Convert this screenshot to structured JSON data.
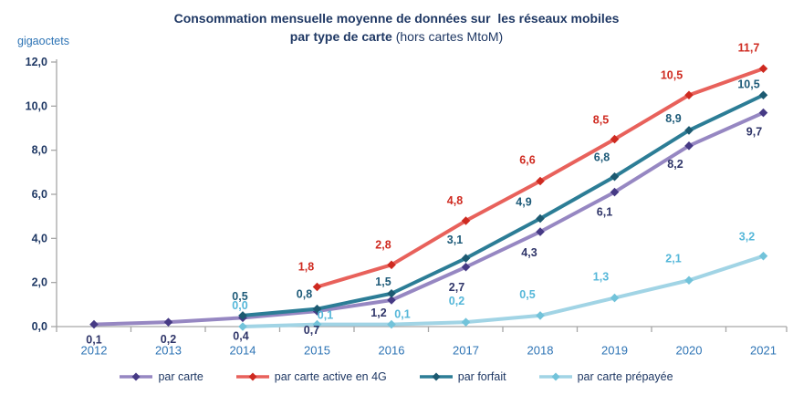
{
  "title": {
    "line1": "Consommation mensuelle moyenne de données sur  les réseaux mobiles",
    "line2_bold": "par type de carte",
    "line2_rest": " (hors cartes MtoM)"
  },
  "y_axis": {
    "unit_label": "gigaoctets",
    "tick_labels": [
      "0,0",
      "2,0",
      "4,0",
      "6,0",
      "8,0",
      "10,0",
      "12,0"
    ],
    "min": 0,
    "max": 12,
    "step": 2
  },
  "chart_data": {
    "type": "line",
    "title": "Consommation mensuelle moyenne de données sur les réseaux mobiles par type de carte (hors cartes MtoM)",
    "ylabel": "gigaoctets",
    "ylim": [
      0,
      12
    ],
    "ytick_step": 2,
    "grid": false,
    "legend_position": "bottom",
    "categories": [
      "2012",
      "2013",
      "2014",
      "2015",
      "2016",
      "2017",
      "2018",
      "2019",
      "2020",
      "2021"
    ],
    "series": [
      {
        "name": "par carte",
        "values": [
          0.1,
          0.2,
          0.4,
          0.7,
          1.2,
          2.7,
          4.3,
          6.1,
          8.2,
          9.7
        ],
        "labels": [
          "0,1",
          "0,2",
          "0,4",
          "0,7",
          "1,2",
          "2,7",
          "4,3",
          "6,1",
          "8,2",
          "9,7"
        ],
        "line_color": "#9687c2",
        "marker_color": "#463a85",
        "label_color": "#2f3569",
        "label_offsets": [
          [
            0,
            17
          ],
          [
            0,
            19
          ],
          [
            -2,
            20
          ],
          [
            -6,
            21
          ],
          [
            -14,
            14
          ],
          [
            -10,
            22
          ],
          [
            -12,
            23
          ],
          [
            -11,
            22
          ],
          [
            -15,
            20
          ],
          [
            -10,
            21
          ]
        ]
      },
      {
        "name": "par carte active en 4G",
        "values": [
          null,
          null,
          null,
          1.8,
          2.8,
          4.8,
          6.6,
          8.5,
          10.5,
          11.7
        ],
        "labels": [
          null,
          null,
          null,
          "1,8",
          "2,8",
          "4,8",
          "6,6",
          "8,5",
          "10,5",
          "11,7"
        ],
        "line_color": "#e8615b",
        "marker_color": "#ce2a20",
        "label_color": "#cf2a20",
        "label_offsets": [
          null,
          null,
          null,
          [
            -12,
            -22
          ],
          [
            -9,
            -22
          ],
          [
            -12,
            -22
          ],
          [
            -14,
            -23
          ],
          [
            -15,
            -21
          ],
          [
            -19,
            -22
          ],
          [
            -16,
            -23
          ]
        ]
      },
      {
        "name": "par forfait",
        "values": [
          null,
          null,
          0.5,
          0.8,
          1.5,
          3.1,
          4.9,
          6.8,
          8.9,
          10.5
        ],
        "labels": [
          null,
          null,
          "0,5",
          "0,8",
          "1,5",
          "3,1",
          "4,9",
          "6,8",
          "8,9",
          "10,5"
        ],
        "line_color": "#2c7d96",
        "marker_color": "#1c5a71",
        "label_color": "#1d5a78",
        "label_offsets": [
          null,
          null,
          [
            -3,
            -21
          ],
          [
            -14,
            -16
          ],
          [
            -9,
            -13
          ],
          [
            -12,
            -20
          ],
          [
            -18,
            -18
          ],
          [
            -14,
            -21
          ],
          [
            -17,
            -13
          ],
          [
            -16,
            -12
          ]
        ]
      },
      {
        "name": "par carte prépayée",
        "values": [
          null,
          null,
          0.0,
          0.1,
          0.1,
          0.2,
          0.5,
          1.3,
          2.1,
          3.2
        ],
        "labels": [
          null,
          null,
          "0,0",
          "0,1",
          "0,1",
          "0,2",
          "0,5",
          "1,3",
          "2,1",
          "3,2"
        ],
        "line_color": "#a1d4e5",
        "marker_color": "#72c3da",
        "label_color": "#55b7d9",
        "label_offsets": [
          null,
          null,
          [
            -3,
            -23
          ],
          [
            9,
            -10
          ],
          [
            12,
            -11
          ],
          [
            -10,
            -23
          ],
          [
            -14,
            -23
          ],
          [
            -15,
            -23
          ],
          [
            -17,
            -24
          ],
          [
            -18,
            -21
          ]
        ]
      }
    ]
  },
  "colors": {
    "title": "#1f3864",
    "axis": "#a6a6a6",
    "y_tick_labels": "#1f3864",
    "x_tick_labels": "#2e74b5",
    "unit_label": "#2e74b5",
    "legend_text": "#1f3864"
  }
}
